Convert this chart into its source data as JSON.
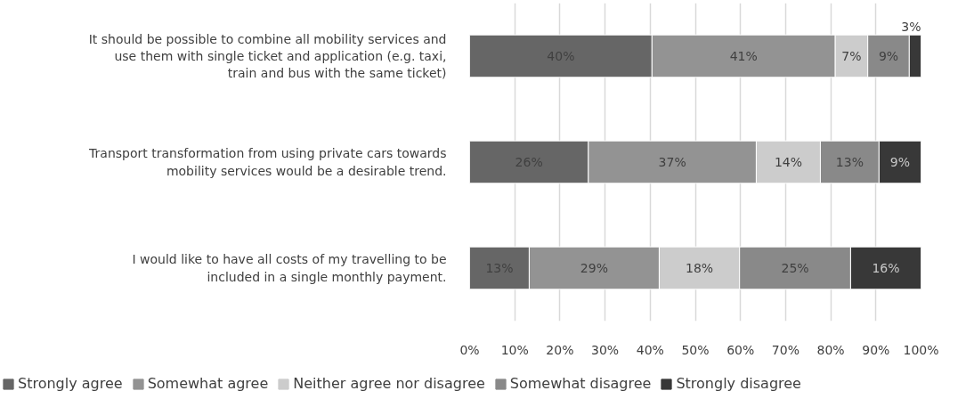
{
  "chart_data": {
    "type": "bar",
    "orientation": "horizontal",
    "stacked": true,
    "categories": [
      "It should be possible to combine all mobility services and use them with single ticket and application (e.g. taxi, train and bus with the same ticket)",
      "Transport transformation from using private cars towards mobility services would be a desirable trend.",
      "I would like to have all costs of my travelling to be included in a single monthly payment."
    ],
    "series": [
      {
        "name": "Strongly agree",
        "color": "#666666",
        "values": [
          40.4,
          26.3,
          13.2
        ],
        "value_labels": [
          "40%",
          "26%",
          "13%"
        ]
      },
      {
        "name": "Somewhat agree",
        "color": "#939393",
        "values": [
          40.6,
          37.2,
          28.8
        ],
        "value_labels": [
          "41%",
          "37%",
          "29%"
        ]
      },
      {
        "name": "Neither agree nor disagree",
        "color": "#cccccc",
        "values": [
          7.2,
          14.2,
          17.8
        ],
        "value_labels": [
          "7%",
          "14%",
          "18%"
        ]
      },
      {
        "name": "Somewhat disagree",
        "color": "#898989",
        "values": [
          9.2,
          13.0,
          24.6
        ],
        "value_labels": [
          "9%",
          "13%",
          "25%"
        ]
      },
      {
        "name": "Strongly disagree",
        "color": "#383838",
        "values": [
          2.6,
          9.3,
          15.6
        ],
        "value_labels": [
          "3%",
          "9%",
          "16%"
        ]
      }
    ],
    "xlim": [
      0,
      100
    ],
    "xticks": [
      {
        "value": 0,
        "label": "0%"
      },
      {
        "value": 10,
        "label": "10%"
      },
      {
        "value": 20,
        "label": "20%"
      },
      {
        "value": 30,
        "label": "30%"
      },
      {
        "value": 40,
        "label": "40%"
      },
      {
        "value": 50,
        "label": "50%"
      },
      {
        "value": 60,
        "label": "60%"
      },
      {
        "value": 70,
        "label": "70%"
      },
      {
        "value": 80,
        "label": "80%"
      },
      {
        "value": 90,
        "label": "90%"
      },
      {
        "value": 100,
        "label": "100%"
      }
    ],
    "grid": "x",
    "legend": "bottom"
  }
}
